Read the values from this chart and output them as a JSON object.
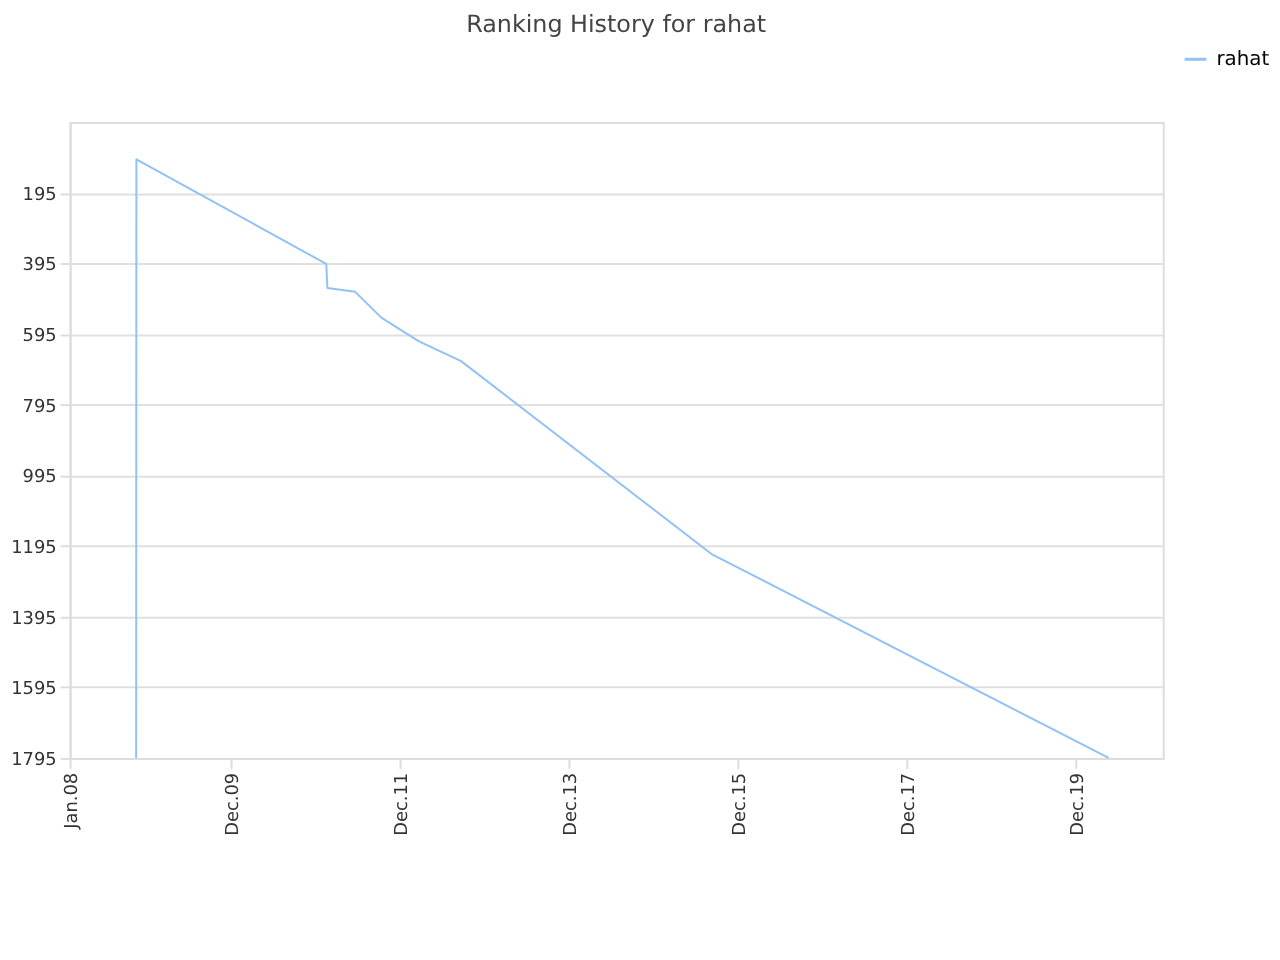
{
  "chart_data": {
    "type": "line",
    "title": "Ranking History for rahat",
    "x": [
      "2008-10-15",
      "2008-10-16",
      "2011-01-15",
      "2011-01-20",
      "2011-05-20",
      "2011-09-10",
      "2012-02-20",
      "2012-08-20",
      "2015-08-08",
      "2020-04-20"
    ],
    "series": [
      {
        "name": "rahat",
        "color": "#90c2f5",
        "values": [
          1795,
          101,
          397,
          465,
          476,
          549,
          616,
          672,
          1218,
          1795
        ]
      }
    ],
    "xlim": [
      "2008-01-01",
      "2020-12-10"
    ],
    "xticks": [
      {
        "value": "2008-01-01",
        "label": "Jan.08"
      },
      {
        "value": "2009-12-01",
        "label": "Dec.09"
      },
      {
        "value": "2011-12-01",
        "label": "Dec.11"
      },
      {
        "value": "2013-12-01",
        "label": "Dec.13"
      },
      {
        "value": "2015-12-01",
        "label": "Dec.15"
      },
      {
        "value": "2017-12-01",
        "label": "Dec.17"
      },
      {
        "value": "2019-12-01",
        "label": "Dec.19"
      }
    ],
    "ylim": [
      1795,
      -5
    ],
    "yticks": [
      195,
      395,
      595,
      795,
      995,
      1195,
      1395,
      1595,
      1795
    ],
    "grid": "y",
    "legend": "top right"
  }
}
